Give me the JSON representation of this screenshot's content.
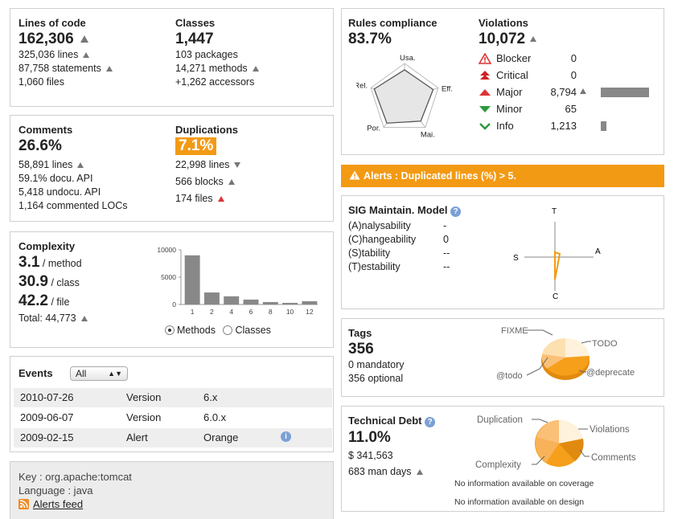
{
  "size": {
    "lines_of_code_label": "Lines of code",
    "lines_of_code": "162,306",
    "lines": "325,036 lines",
    "statements": "87,758 statements",
    "files": "1,060 files",
    "classes_label": "Classes",
    "classes": "1,447",
    "packages": "103 packages",
    "methods": "14,271 methods",
    "accessors": "+1,262 accessors"
  },
  "comments": {
    "label": "Comments",
    "value": "26.6%",
    "lines": "58,891 lines",
    "docu_api": "59.1% docu. API",
    "undocu_api": "5,418 undocu. API",
    "commented_locs": "1,164 commented LOCs",
    "dup_label": "Duplications",
    "dup_value": "7.1%",
    "dup_lines": "22,998 lines",
    "dup_blocks": "566 blocks",
    "dup_files": "174 files"
  },
  "complexity": {
    "label": "Complexity",
    "per_method": "3.1",
    "per_method_unit": "/ method",
    "per_class": "30.9",
    "per_class_unit": "/ class",
    "per_file": "42.2",
    "per_file_unit": "/ file",
    "total": "Total: 44,773",
    "radio_methods": "Methods",
    "radio_classes": "Classes",
    "chart_data": {
      "type": "bar",
      "categories": [
        "1",
        "2",
        "4",
        "6",
        "8",
        "10",
        "12"
      ],
      "values": [
        9000,
        2200,
        1500,
        900,
        450,
        300,
        600
      ],
      "ylim": [
        0,
        10000
      ],
      "yticks": [
        "10000",
        "5000",
        "0"
      ],
      "title": "",
      "xlabel": "",
      "ylabel": ""
    }
  },
  "events": {
    "label": "Events",
    "filter": "All",
    "rows": [
      {
        "date": "2010-07-26",
        "category": "Version",
        "value": "6.x"
      },
      {
        "date": "2009-06-07",
        "category": "Version",
        "value": "6.0.x"
      },
      {
        "date": "2009-02-15",
        "category": "Alert",
        "value": "Orange"
      }
    ]
  },
  "project": {
    "key": "Key : org.apache:tomcat",
    "language": "Language : java",
    "feed": "Alerts feed"
  },
  "rules": {
    "label": "Rules compliance",
    "value": "83.7%",
    "radar_labels": {
      "usa": "Usa.",
      "rel": "Rel.",
      "eff": "Eff.",
      "por": "Por.",
      "mai": "Mai."
    },
    "radar_values": [
      0.82,
      0.85,
      0.78,
      0.85,
      0.9
    ]
  },
  "violations": {
    "label": "Violations",
    "value": "10,072",
    "rows": [
      {
        "name": "Blocker",
        "count": "0",
        "bar": 0
      },
      {
        "name": "Critical",
        "count": "0",
        "bar": 0
      },
      {
        "name": "Major",
        "count": "8,794",
        "bar": 1
      },
      {
        "name": "Minor",
        "count": "65",
        "bar": 0
      },
      {
        "name": "Info",
        "count": "1,213",
        "bar": 0.12
      }
    ]
  },
  "alert": {
    "text": "Alerts : Duplicated lines (%) > 5."
  },
  "sig": {
    "label": "SIG Maintain. Model",
    "rows": [
      {
        "name": "(A)nalysability",
        "value": "-"
      },
      {
        "name": "(C)hangeability",
        "value": "0"
      },
      {
        "name": "(S)tability",
        "value": "--"
      },
      {
        "name": "(T)estability",
        "value": "--"
      }
    ],
    "axes": {
      "t": "T",
      "a": "A",
      "s": "S",
      "c": "C"
    }
  },
  "tags": {
    "label": "Tags",
    "value": "356",
    "mandatory": "0 mandatory",
    "optional": "356 optional",
    "pie_labels": {
      "fixme": "FIXME",
      "todo": "TODO",
      "at_todo": "@todo",
      "deprecate": "@deprecate"
    }
  },
  "debt": {
    "label": "Technical Debt",
    "value": "11.0%",
    "amount": "$ 341,563",
    "days": "683 man days",
    "coverage": "No information available on coverage",
    "design": "No information available on design",
    "pie_labels": {
      "duplication": "Duplication",
      "violations": "Violations",
      "comments": "Comments",
      "complexity": "Complexity"
    }
  },
  "colors": {
    "accent": "#f39a14",
    "alert_bg": "#f39a14",
    "bar": "#888888"
  }
}
